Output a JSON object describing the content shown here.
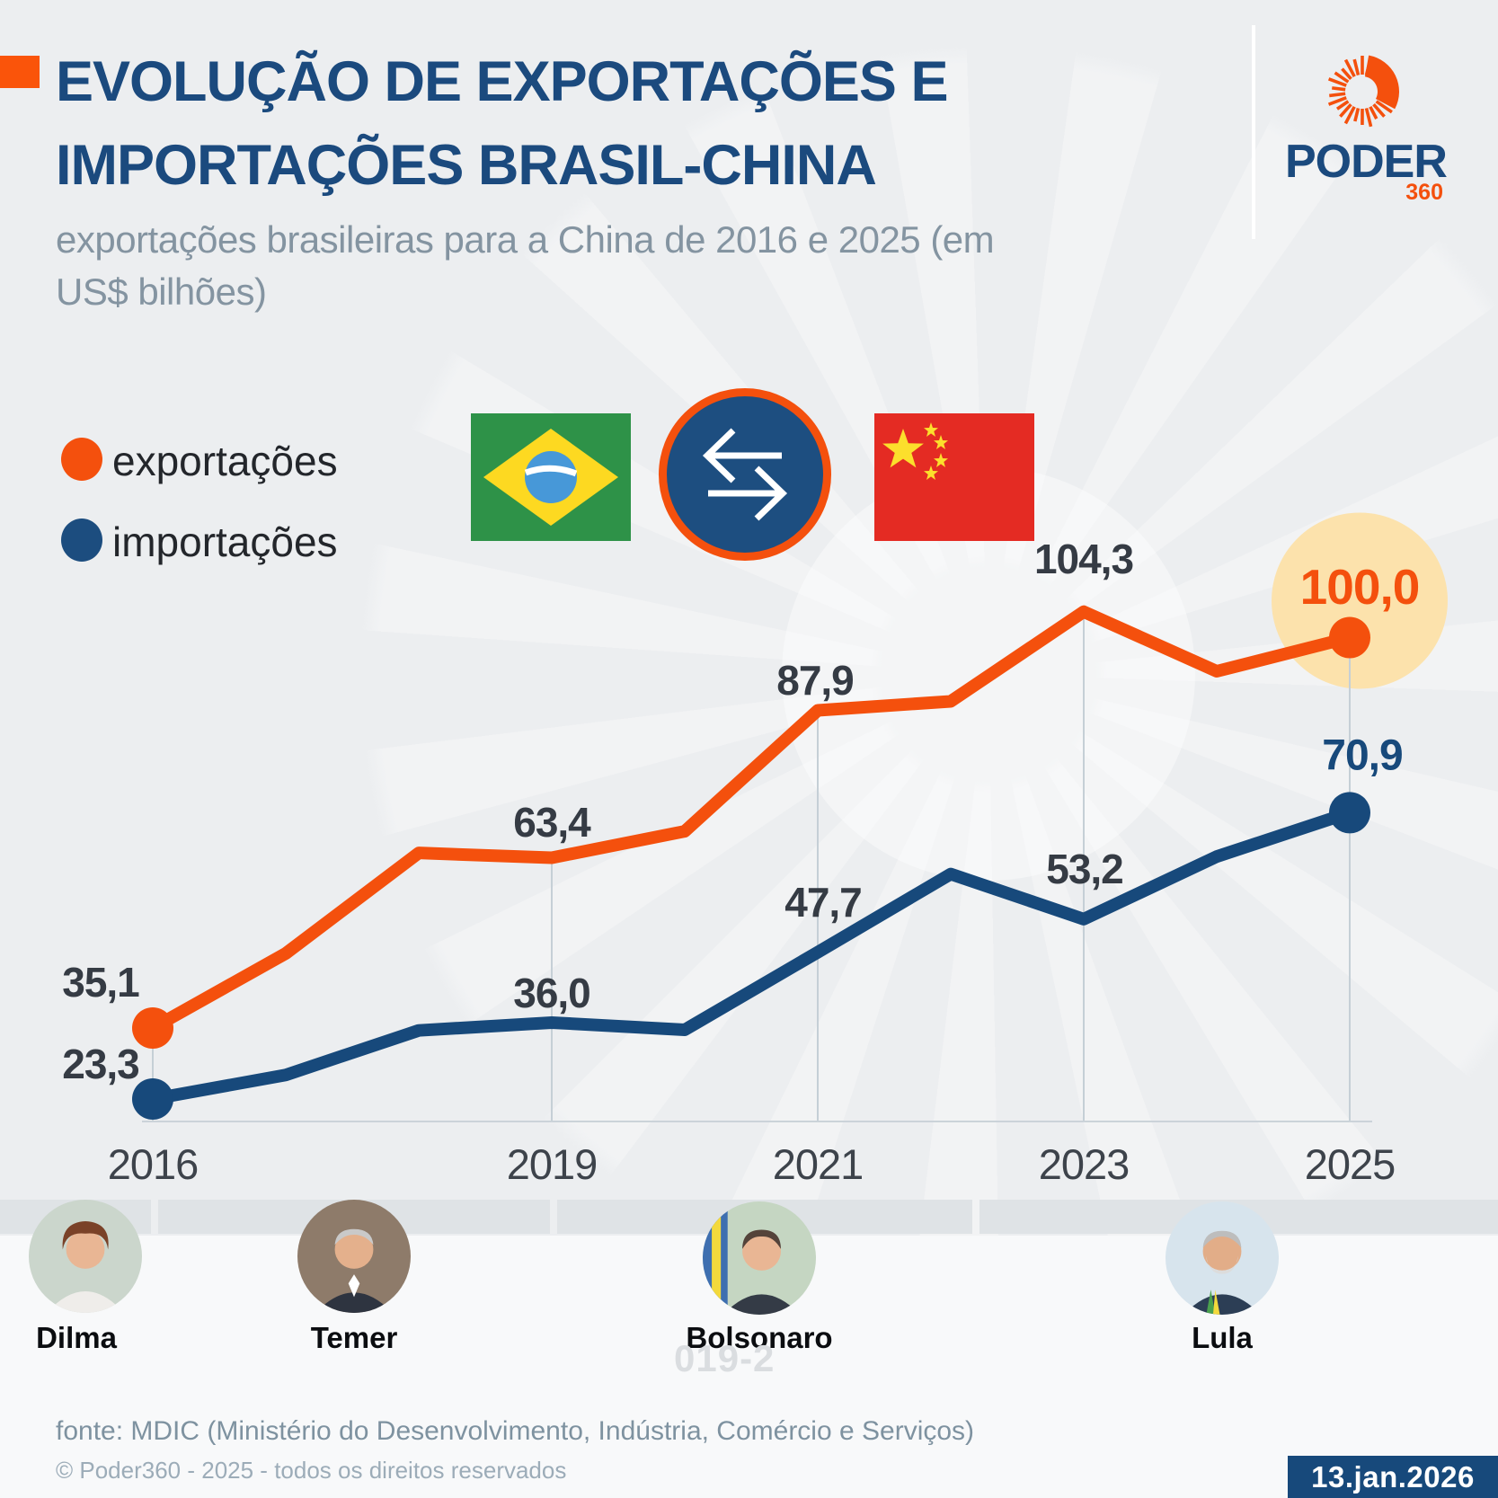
{
  "header": {
    "title_line1": "EVOLUÇÃO DE EXPORTAÇÕES E",
    "title_line2": "IMPORTAÇÕES BRASIL-CHINA",
    "subtitle_line1": "exportações brasileiras para a China de 2016 e 2025 (em",
    "subtitle_line2": "US$ bilhões)",
    "accent_color": "#FA540A",
    "title_color": "#1B4A7E"
  },
  "logo": {
    "name": "PODER",
    "suffix": "360",
    "spiral_color": "#F4500D"
  },
  "legend": [
    {
      "label": "exportações",
      "color": "#F4500D"
    },
    {
      "label": "importações",
      "color": "#1C4D7F"
    }
  ],
  "icons": {
    "brazil_flag": "brazil-flag",
    "china_flag": "china-flag",
    "exchange_arrows": "exchange-arrows"
  },
  "chart_data": {
    "type": "line",
    "title": "Evolução de exportações e importações Brasil-China",
    "unit": "US$ bilhões",
    "x": [
      2016,
      2017,
      2018,
      2019,
      2020,
      2021,
      2022,
      2023,
      2024,
      2025
    ],
    "x_tick_labels": [
      "2016",
      "2019",
      "2021",
      "2023",
      "2025"
    ],
    "x_tick_years": [
      2016,
      2019,
      2021,
      2023,
      2025
    ],
    "grid": "vertical-leaders-only",
    "legend_position": "top-left",
    "series": [
      {
        "name": "exportações",
        "color": "#F4500D",
        "values": [
          35.1,
          47.5,
          64.2,
          63.4,
          67.8,
          87.9,
          89.4,
          104.3,
          94.4,
          100.0
        ],
        "point_labels": {
          "2016": "35,1",
          "2019": "63,4",
          "2021": "87,9",
          "2023": "104,3",
          "2025": "100,0"
        }
      },
      {
        "name": "importações",
        "color": "#17497B",
        "values": [
          23.3,
          27.3,
          34.7,
          36.0,
          34.8,
          47.7,
          60.7,
          53.2,
          63.6,
          70.9
        ],
        "point_labels": {
          "2016": "23,3",
          "2019": "36,0",
          "2021": "47,7",
          "2023": "53,2",
          "2025": "70,9"
        }
      }
    ],
    "highlight": {
      "series": "exportações",
      "year": 2025,
      "label": "100,0",
      "circle_color": "#FCE2AC"
    }
  },
  "presidents": [
    {
      "name": "Dilma"
    },
    {
      "name": "Temer"
    },
    {
      "name": "Bolsonaro"
    },
    {
      "name": "Lula"
    }
  ],
  "watermark_text": "019-2",
  "footer": {
    "source": "fonte: MDIC (Ministério do Desenvolvimento, Indústria, Comércio e Serviços)",
    "copyright": "© Poder360 - 2025 - todos os direitos reservados",
    "date": "13.jan.2026"
  }
}
